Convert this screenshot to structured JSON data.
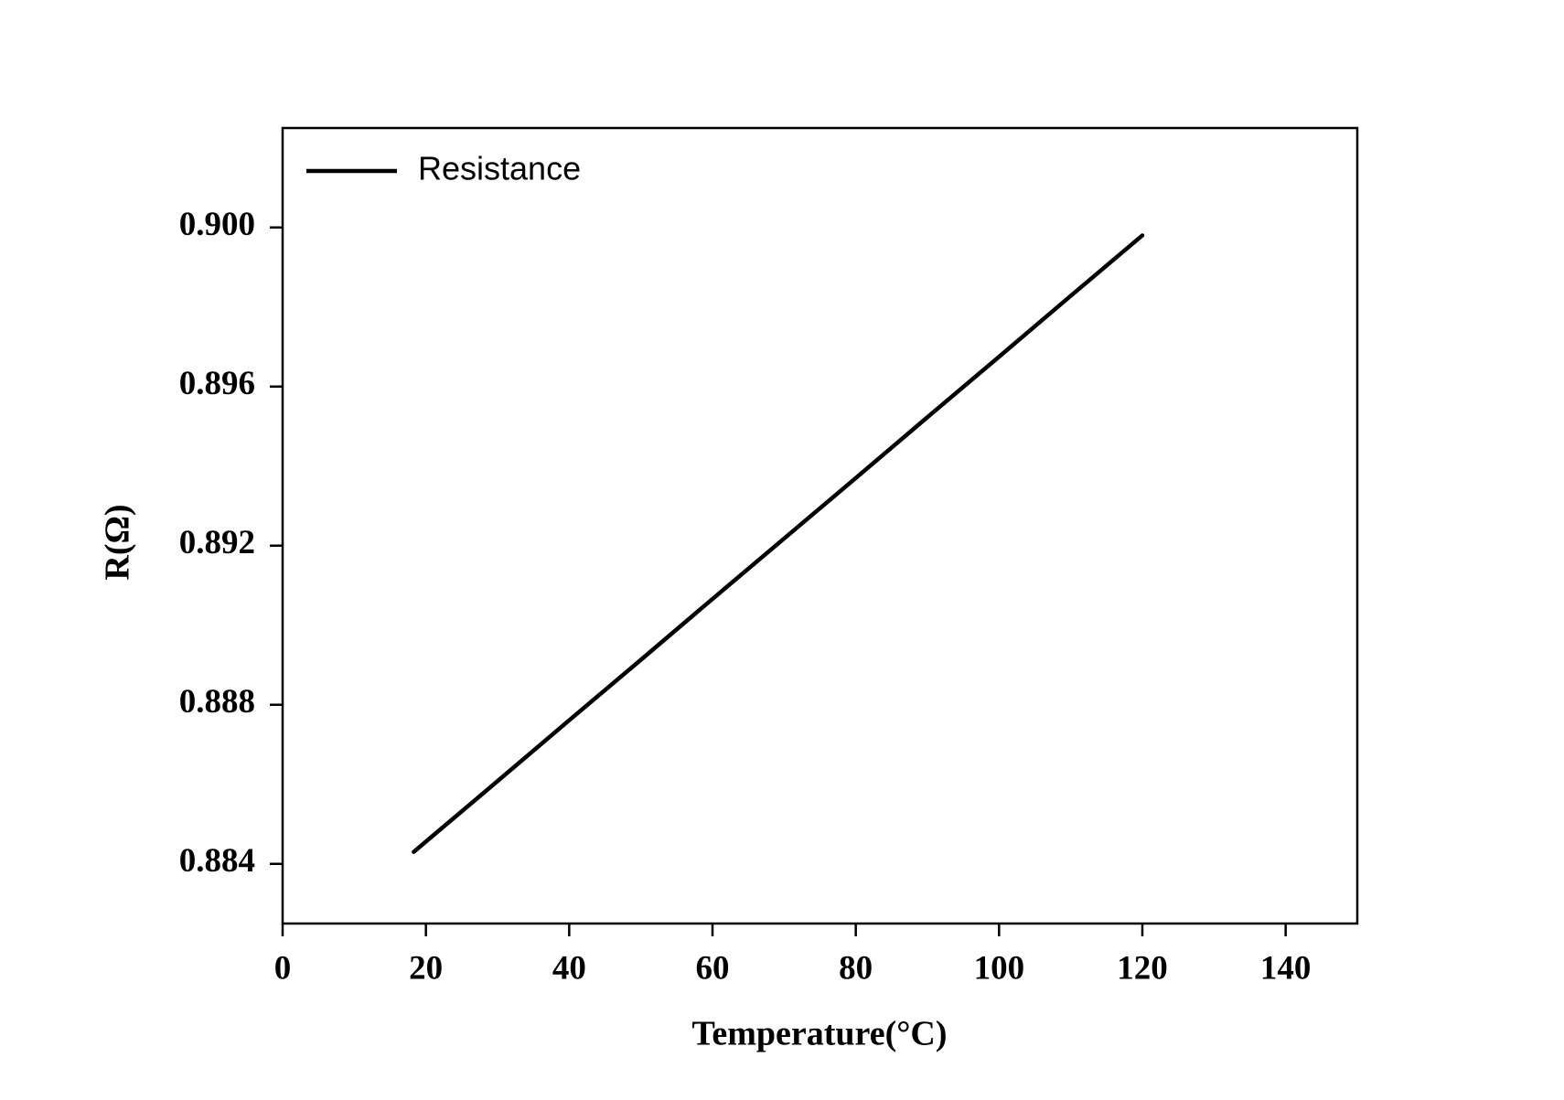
{
  "chart_data": {
    "type": "line",
    "xlabel": "Temperature(°C)",
    "ylabel": "R(Ω)",
    "x": [
      18.3,
      20,
      30,
      40,
      50,
      60,
      70,
      80,
      90,
      100,
      110,
      120
    ],
    "series": [
      {
        "name": "Resistance",
        "color": "#000000",
        "values": [
          0.8843,
          0.88456,
          0.88608,
          0.88761,
          0.88913,
          0.89066,
          0.89218,
          0.8937,
          0.89523,
          0.89675,
          0.89828,
          0.8998
        ]
      }
    ],
    "xlim": [
      0,
      150
    ],
    "xticks": [
      0,
      20,
      40,
      60,
      80,
      100,
      120,
      140
    ],
    "ylim": [
      0.8825,
      0.9025
    ],
    "yticks": [
      0.884,
      0.888,
      0.892,
      0.896,
      {
        "value": 0.9,
        "label": "0.900"
      }
    ],
    "legend": "upper left",
    "grid": false
  }
}
